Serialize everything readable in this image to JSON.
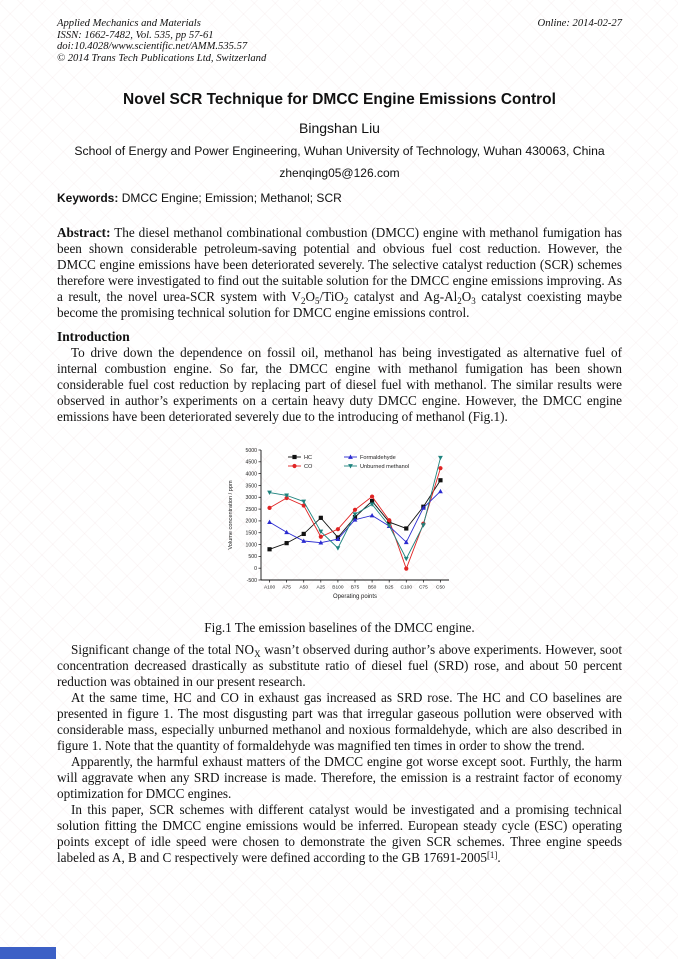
{
  "header": {
    "journal": "Applied Mechanics and Materials",
    "issn_line": "ISSN: 1662-7482, Vol. 535, pp 57-61",
    "doi_line": "doi:10.4028/www.scientific.net/AMM.535.57",
    "copyright_line": "© 2014 Trans Tech Publications Ltd, Switzerland",
    "online_date": "Online: 2014-02-27"
  },
  "title": "Novel SCR Technique for DMCC Engine Emissions Control",
  "author": "Bingshan Liu",
  "affiliation": "School of Energy and Power Engineering, Wuhan University of Technology, Wuhan 430063, China",
  "email": "zhenqing05@126.com",
  "keywords": {
    "label": "Keywords:",
    "text": " DMCC Engine; Emission; Methanol; SCR"
  },
  "abstract": {
    "label": "Abstract:",
    "segments": [
      " The diesel methanol combinational combustion (DMCC) engine with methanol fumigation has been shown considerable petroleum-saving potential and obvious fuel cost reduction. However, the DMCC engine emissions have been deteriorated severely. The selective catalyst reduction (SCR) schemes therefore were investigated to find out the suitable solution for the DMCC engine emissions improving. As a result, the novel urea-SCR system with V",
      {
        "sub": "2"
      },
      "O",
      {
        "sub": "5"
      },
      "/TiO",
      {
        "sub": "2"
      },
      " catalyst and Ag-Al",
      {
        "sub": "2"
      },
      "O",
      {
        "sub": "3"
      },
      " catalyst coexisting maybe become the promising technical solution for DMCC engine emissions control."
    ]
  },
  "introduction": {
    "heading": "Introduction",
    "paragraph": [
      "To drive down the dependence on fossil oil, methanol has being investigated as alternative fuel of internal combustion engine. So far, the DMCC engine with methanol fumigation has been shown considerable fuel cost reduction by replacing part of diesel fuel with methanol. The similar results were observed in author’s experiments on a certain heavy duty DMCC engine. However, the DMCC engine emissions have been deteriorated severely due to the introducing of methanol (Fig.1)."
    ]
  },
  "figure": {
    "caption": "Fig.1 The emission baselines of the DMCC engine."
  },
  "chart_data": {
    "type": "line",
    "title": "",
    "xlabel": "Operating points",
    "ylabel": "Volume concentration / ppm",
    "ylim": [
      -500,
      5000
    ],
    "ytick_step": 500,
    "grid": false,
    "legend_position": "top-inside",
    "categories": [
      "A100",
      "A75",
      "A50",
      "A25",
      "B100",
      "B75",
      "B50",
      "B25",
      "C100",
      "C75",
      "C50"
    ],
    "series": [
      {
        "name": "HC",
        "color": "#111111",
        "marker": "square",
        "values": [
          800,
          1060,
          1450,
          2130,
          1300,
          2160,
          2840,
          1950,
          1680,
          2600,
          3720
        ]
      },
      {
        "name": "CO",
        "color": "#e02424",
        "marker": "circle",
        "values": [
          2550,
          2970,
          2650,
          1330,
          1650,
          2470,
          3030,
          2030,
          -20,
          1880,
          4230
        ]
      },
      {
        "name": "Formaldehyde",
        "color": "#2b2bd0",
        "marker": "triangle-up",
        "values": [
          1950,
          1520,
          1150,
          1080,
          1230,
          2050,
          2230,
          1780,
          1100,
          2550,
          3250
        ]
      },
      {
        "name": "Unburned methanol",
        "color": "#1e837e",
        "marker": "triangle-down",
        "values": [
          3200,
          3080,
          2820,
          1550,
          850,
          2280,
          2700,
          1800,
          400,
          1820,
          4670
        ]
      }
    ]
  },
  "paragraphs": [
    [
      "Significant change of the total NO",
      {
        "sub": "X"
      },
      " wasn’t observed during author’s above experiments. However, soot concentration decreased drastically as substitute ratio of diesel fuel (SRD) rose, and about 50 percent reduction was obtained in our present research."
    ],
    [
      "At the same time, HC and CO in exhaust gas increased as SRD rose. The HC and CO baselines are presented in figure 1. The most disgusting part was that irregular gaseous pollution were observed with considerable mass, especially unburned methanol and noxious formaldehyde, which are also described in figure 1. Note that the quantity of formaldehyde was magnified ten times in order to show the trend."
    ],
    [
      "Apparently, the harmful exhaust matters of the DMCC engine got worse except soot. Furthly, the harm will aggravate when any SRD increase is made. Therefore, the emission is a restraint factor of economy optimization for DMCC engines."
    ],
    [
      "In this paper, SCR schemes with different catalyst would be investigated and a promising technical solution fitting the DMCC engine emissions would be inferred. European steady cycle (ESC) operating points except of idle speed were chosen to demonstrate the given SCR schemes. Three engine speeds labeled as A, B and C respectively were defined according to the GB 17691-2005",
      {
        "sup": "[1]"
      },
      "."
    ]
  ]
}
